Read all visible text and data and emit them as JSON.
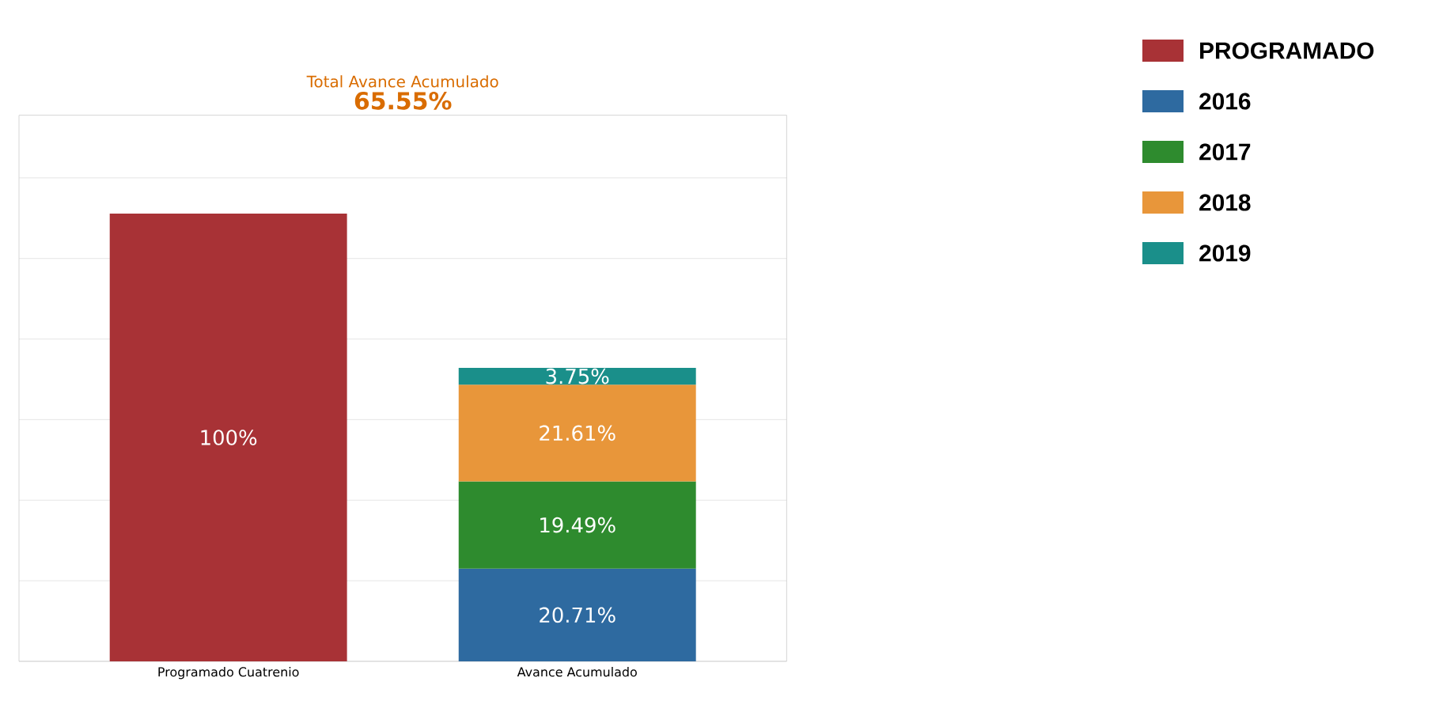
{
  "chart_data": {
    "type": "bar",
    "title": "Total Avance Acumulado",
    "subtitle": "65.55%",
    "stacked": true,
    "categories": [
      "Programado Cuatrenio",
      "Avance Acumulado"
    ],
    "series": [
      {
        "name": "PROGRAMADO",
        "color": "#a83236",
        "values": [
          100,
          null
        ],
        "value_labels": [
          "100%",
          null
        ]
      },
      {
        "name": "2016",
        "color": "#2e6aa0",
        "values": [
          null,
          20.71
        ],
        "value_labels": [
          null,
          "20.71%"
        ]
      },
      {
        "name": "2017",
        "color": "#2e8b2e",
        "values": [
          null,
          19.49
        ],
        "value_labels": [
          null,
          "19.49%"
        ]
      },
      {
        "name": "2018",
        "color": "#e8963a",
        "values": [
          null,
          21.61
        ],
        "value_labels": [
          null,
          "21.61%"
        ]
      },
      {
        "name": "2019",
        "color": "#1a8f8a",
        "values": [
          null,
          3.75
        ],
        "value_labels": [
          null,
          "3.75%"
        ]
      }
    ],
    "grid": "y",
    "tick_labels": "x",
    "legend": "top right"
  }
}
